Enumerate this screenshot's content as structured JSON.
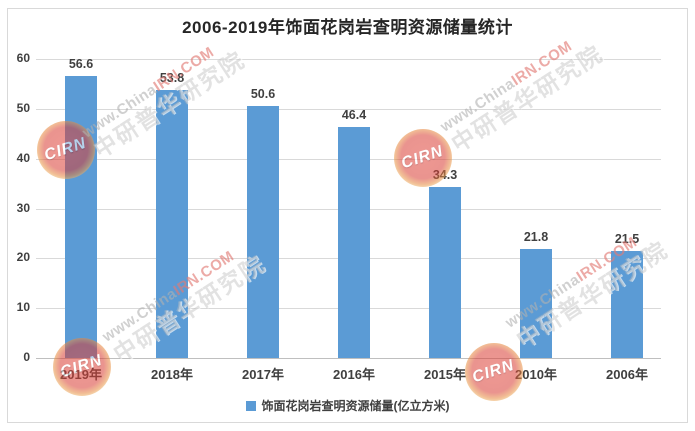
{
  "title": "2006-2019年饰面花岗岩查明资源储量统计",
  "legend": {
    "label": "饰面花岗岩查明资源储量(亿立方米)",
    "marker_color": "#5B9BD5"
  },
  "chart_data": {
    "type": "bar",
    "title": "2006-2019年饰面花岗岩查明资源储量统计",
    "categories": [
      "2019年",
      "2018年",
      "2017年",
      "2016年",
      "2015年",
      "2010年",
      "2006年"
    ],
    "values": [
      56.6,
      53.8,
      50.6,
      46.4,
      34.3,
      21.8,
      21.5
    ],
    "data_labels": [
      "56.6",
      "53.8",
      "50.6",
      "46.4",
      "34.3",
      "21.8",
      "21.5"
    ],
    "series_name": "饰面花岗岩查明资源储量(亿立方米)",
    "xlabel": "",
    "ylabel": "",
    "ylim": [
      0,
      60
    ],
    "yticks": [
      0,
      10,
      20,
      30,
      40,
      50,
      60
    ],
    "grid": true,
    "legend_position": "bottom",
    "bar_color": "#5B9BD5"
  },
  "watermark": {
    "logo_text": "CIRN",
    "url_gray": "www.China",
    "url_red": "IRN.COM",
    "org_name": "中研普华研究院"
  },
  "colors": {
    "bar": "#5B9BD5",
    "gridline": "#D9D9D9",
    "axis_line": "#BFBFBF",
    "label_text": "#404040",
    "frame_border": "#D9D9D9"
  }
}
